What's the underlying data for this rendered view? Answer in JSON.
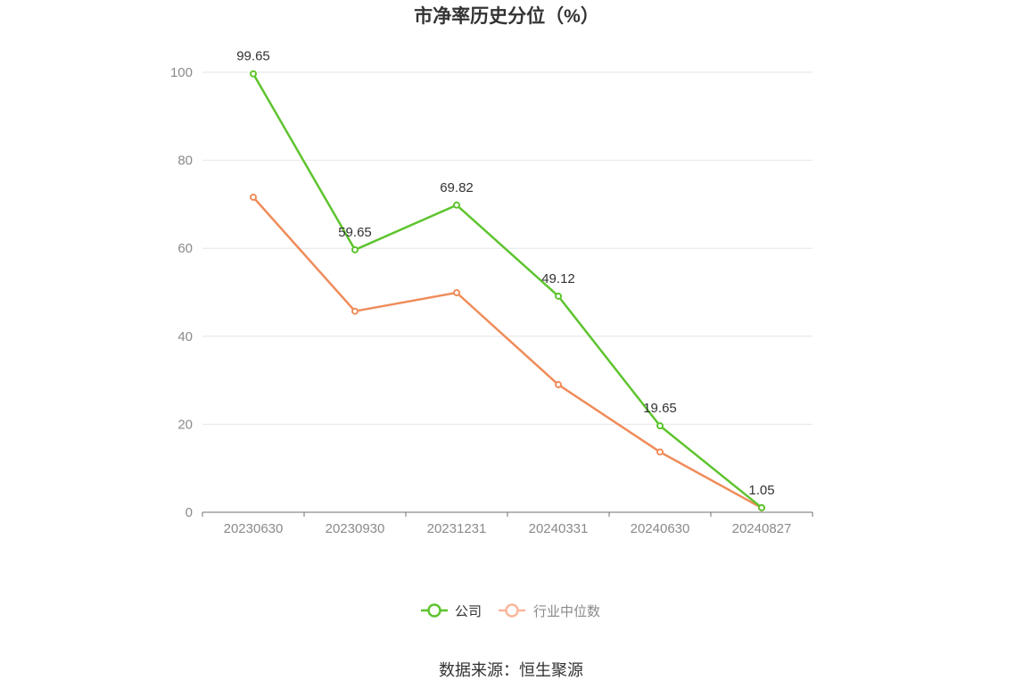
{
  "chart_data": {
    "type": "line",
    "title": "市净率历史分位（%）",
    "categories": [
      "20230630",
      "20230930",
      "20231231",
      "20240331",
      "20240630",
      "20240827"
    ],
    "ylim": [
      0,
      100
    ],
    "yticks": [
      0,
      20,
      40,
      60,
      80,
      100
    ],
    "grid": true,
    "legend_position": "bottom-center",
    "series": [
      {
        "name": "公司",
        "color": "#5ec42f",
        "values": [
          99.65,
          59.65,
          69.82,
          49.12,
          19.65,
          1.05
        ],
        "labels": [
          "99.65",
          "59.65",
          "69.82",
          "49.12",
          "19.65",
          "1.05"
        ]
      },
      {
        "name": "行业中位数",
        "color": "#ef8c5a",
        "legend_color": "#f8b79b",
        "values": [
          71.6,
          45.7,
          49.9,
          29.0,
          13.7,
          1.0
        ]
      }
    ]
  },
  "source": "数据来源：恒生聚源"
}
